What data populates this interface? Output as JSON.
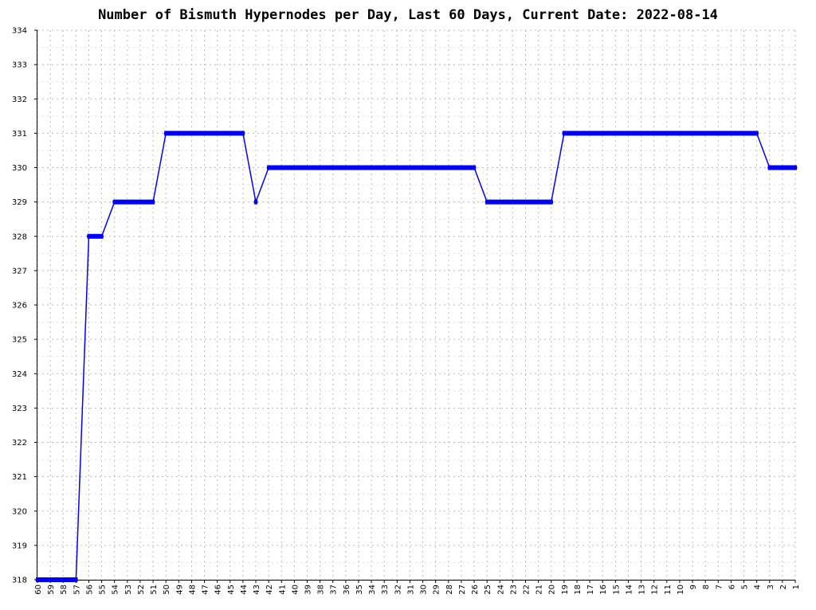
{
  "chart_data": {
    "type": "line",
    "title": "Number of Bismuth Hypernodes per Day, Last 60 Days, Current Date: 2022-08-14",
    "xlabel": "",
    "ylabel": "",
    "ylim": [
      318,
      334
    ],
    "y_ticks": [
      318,
      319,
      320,
      321,
      322,
      323,
      324,
      325,
      326,
      327,
      328,
      329,
      330,
      331,
      332,
      333,
      334
    ],
    "x_ticks": [
      60,
      59,
      58,
      57,
      56,
      55,
      54,
      53,
      52,
      51,
      50,
      49,
      48,
      47,
      46,
      45,
      44,
      43,
      42,
      41,
      40,
      39,
      38,
      37,
      36,
      35,
      34,
      33,
      32,
      31,
      30,
      29,
      28,
      27,
      26,
      25,
      24,
      23,
      22,
      21,
      20,
      19,
      18,
      17,
      16,
      15,
      14,
      13,
      12,
      11,
      10,
      9,
      8,
      7,
      6,
      5,
      4,
      3,
      2,
      1
    ],
    "grid": true,
    "line_color": "#0000ff",
    "x": [
      60,
      59,
      58,
      57,
      56,
      55,
      54,
      53,
      52,
      51,
      50,
      49,
      48,
      47,
      46,
      45,
      44,
      43,
      42,
      41,
      40,
      39,
      38,
      37,
      36,
      35,
      34,
      33,
      32,
      31,
      30,
      29,
      28,
      27,
      26,
      25,
      24,
      23,
      22,
      21,
      20,
      19,
      18,
      17,
      16,
      15,
      14,
      13,
      12,
      11,
      10,
      9,
      8,
      7,
      6,
      5,
      4,
      3,
      2,
      1
    ],
    "series": [
      {
        "values": [
          318,
          318,
          318,
          318,
          328,
          328,
          329,
          329,
          329,
          329,
          331,
          331,
          331,
          331,
          331,
          331,
          331,
          329,
          330,
          330,
          330,
          330,
          330,
          330,
          330,
          330,
          330,
          330,
          330,
          330,
          330,
          330,
          330,
          330,
          330,
          329,
          329,
          329,
          329,
          329,
          329,
          331,
          331,
          331,
          331,
          331,
          331,
          331,
          331,
          331,
          331,
          331,
          331,
          331,
          331,
          331,
          331,
          330,
          330,
          330
        ]
      }
    ]
  }
}
